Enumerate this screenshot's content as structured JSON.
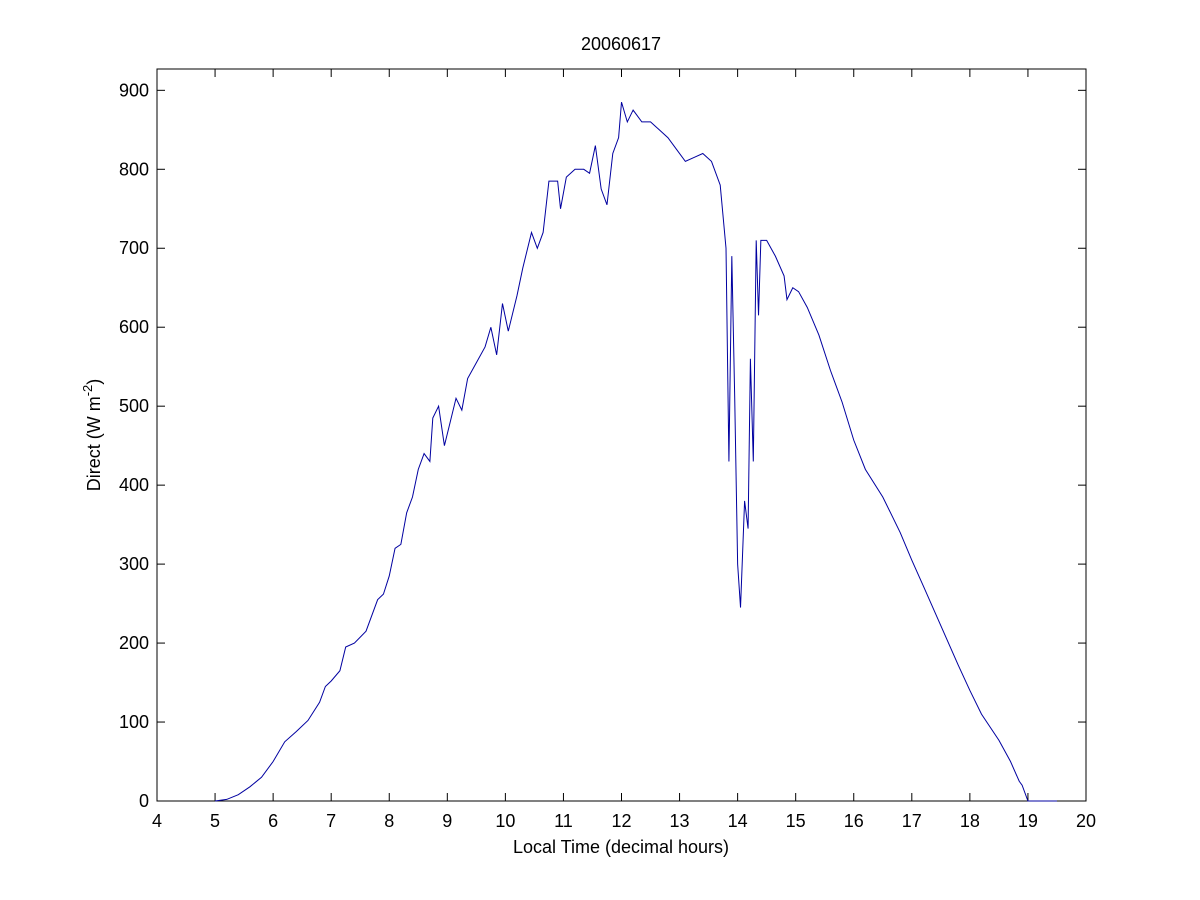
{
  "chart_data": {
    "type": "line",
    "title": "20060617",
    "xlabel": "Local Time (decimal hours)",
    "ylabel": [
      "Direct (W m",
      "-2",
      ")"
    ],
    "xlim": [
      4,
      20
    ],
    "xticks": [
      4,
      5,
      6,
      7,
      8,
      9,
      10,
      11,
      12,
      13,
      14,
      15,
      16,
      17,
      18,
      19,
      20
    ],
    "ylim": [
      0,
      927
    ],
    "yticks": [
      0,
      100,
      200,
      300,
      400,
      500,
      600,
      700,
      800,
      900
    ],
    "series": [
      {
        "color": "#0000a0",
        "x": [
          5.0,
          5.2,
          5.4,
          5.6,
          5.8,
          6.0,
          6.2,
          6.4,
          6.6,
          6.8,
          6.9,
          7.0,
          7.15,
          7.25,
          7.4,
          7.6,
          7.8,
          7.9,
          8.0,
          8.1,
          8.2,
          8.3,
          8.4,
          8.5,
          8.6,
          8.7,
          8.75,
          8.85,
          8.95,
          9.05,
          9.15,
          9.25,
          9.35,
          9.5,
          9.65,
          9.75,
          9.85,
          9.95,
          10.05,
          10.2,
          10.3,
          10.45,
          10.55,
          10.65,
          10.75,
          10.9,
          10.95,
          11.05,
          11.2,
          11.35,
          11.45,
          11.55,
          11.65,
          11.75,
          11.85,
          11.95,
          12.0,
          12.1,
          12.2,
          12.35,
          12.5,
          12.65,
          12.8,
          12.95,
          13.1,
          13.25,
          13.4,
          13.55,
          13.7,
          13.8,
          13.85,
          13.9,
          13.95,
          14.0,
          14.05,
          14.12,
          14.18,
          14.22,
          14.27,
          14.32,
          14.36,
          14.4,
          14.5,
          14.65,
          14.8,
          14.85,
          14.95,
          15.05,
          15.2,
          15.4,
          15.6,
          15.8,
          16.0,
          16.2,
          16.5,
          16.8,
          17.0,
          17.2,
          17.5,
          17.8,
          18.0,
          18.2,
          18.5,
          18.7,
          18.85,
          18.9,
          19.0,
          19.2,
          19.5
        ],
        "values": [
          0,
          2,
          8,
          18,
          30,
          50,
          75,
          88,
          102,
          125,
          145,
          152,
          165,
          195,
          200,
          215,
          255,
          262,
          285,
          320,
          325,
          365,
          385,
          420,
          440,
          430,
          485,
          500,
          450,
          480,
          510,
          495,
          535,
          555,
          575,
          600,
          565,
          630,
          595,
          640,
          675,
          720,
          700,
          720,
          785,
          785,
          750,
          790,
          800,
          800,
          795,
          830,
          775,
          755,
          820,
          840,
          885,
          860,
          875,
          860,
          860,
          850,
          840,
          825,
          810,
          815,
          820,
          810,
          780,
          700,
          430,
          690,
          510,
          300,
          245,
          380,
          345,
          560,
          430,
          710,
          615,
          710,
          710,
          690,
          665,
          635,
          650,
          645,
          625,
          590,
          545,
          505,
          457,
          420,
          385,
          340,
          305,
          272,
          222,
          172,
          140,
          110,
          77,
          50,
          25,
          20,
          0,
          0,
          0
        ]
      }
    ]
  }
}
